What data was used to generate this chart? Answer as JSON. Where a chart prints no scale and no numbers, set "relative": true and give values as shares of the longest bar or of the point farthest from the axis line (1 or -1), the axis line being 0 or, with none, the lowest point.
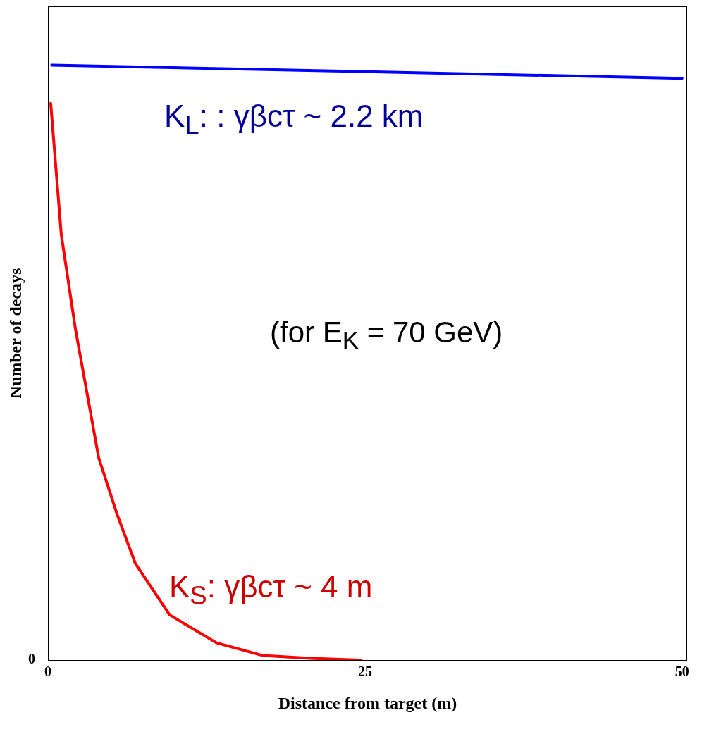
{
  "chart_data": {
    "type": "line",
    "relative": true,
    "xlabel": "Distance from target (m)",
    "ylabel": "Number of decays",
    "xlim": [
      0,
      50.4
    ],
    "xticks": [
      0,
      25,
      50
    ],
    "grid": false,
    "legend": false,
    "marker": "none",
    "line_style": "solid",
    "series": [
      {
        "name": "K$_{L}$:  : γβcτ ~ 2.2 km",
        "color": "#0000ff",
        "x": [
          0.3,
          50
        ],
        "values": [
          1,
          0.978
        ]
      },
      {
        "name": "K$_{S}$: γβcτ ~ 4 m",
        "color": "#ff0000",
        "x": [
          0.22,
          1.05,
          2.17,
          3.0,
          4.0,
          5.5,
          6.9,
          9.6,
          13.3,
          16.9,
          20.7,
          24.7
        ],
        "values": [
          0.936,
          0.716,
          0.557,
          0.459,
          0.341,
          0.243,
          0.163,
          0.077,
          0.03,
          0.009,
          0.004,
          0.001
        ]
      }
    ],
    "annotations": [
      "(for E$_{K}$ = 70 GeV)",
      "0"
    ]
  }
}
